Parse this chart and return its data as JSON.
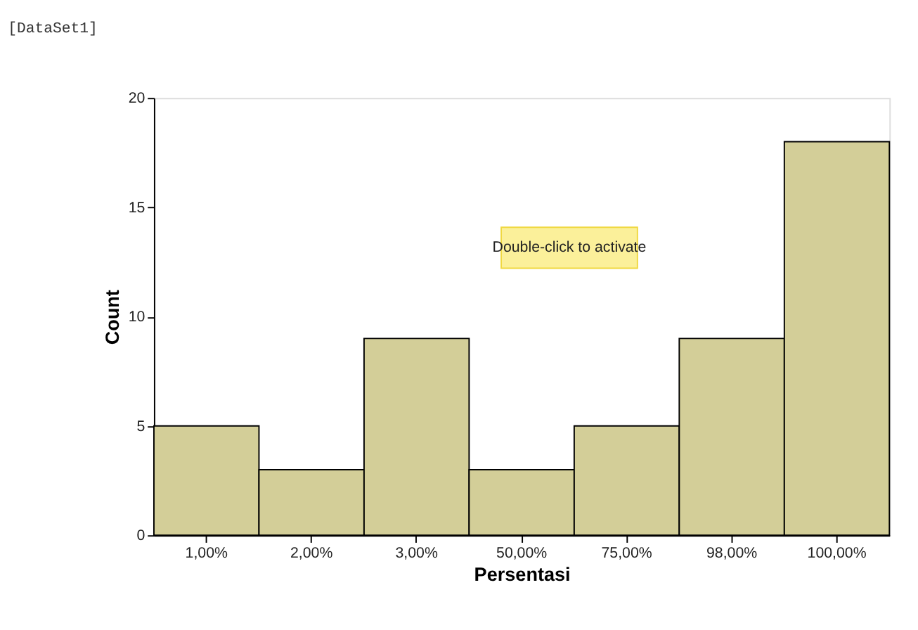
{
  "chart_data": {
    "type": "bar",
    "xlabel": "Persentasi",
    "ylabel": "Count",
    "categories": [
      "1,00%",
      "2,00%",
      "3,00%",
      "50,00%",
      "75,00%",
      "98,00%",
      "100,00%"
    ],
    "values": [
      5,
      3,
      9,
      3,
      5,
      9,
      18
    ],
    "color": "#d3ce98",
    "ylim": [
      0,
      20
    ],
    "yticks": [
      0,
      5,
      10,
      15,
      20
    ],
    "grid": false,
    "annotations": [
      "[DataSet1]",
      "Double-click to activate"
    ]
  }
}
